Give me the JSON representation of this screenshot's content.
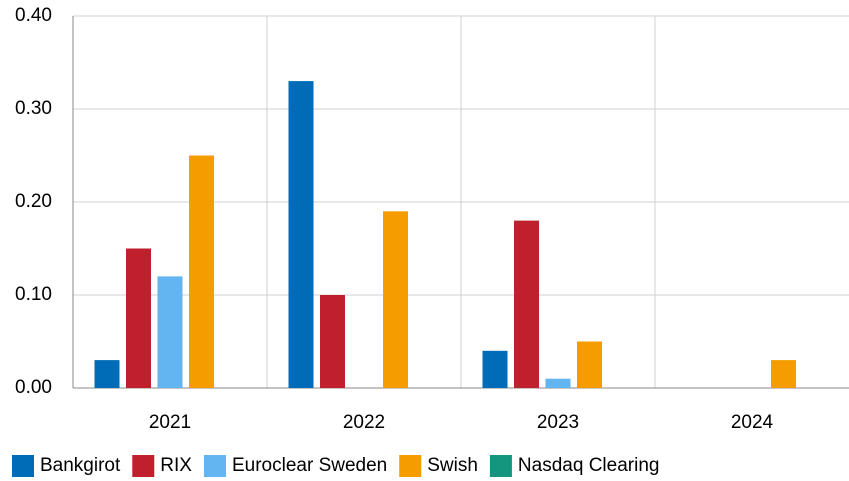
{
  "chart_data": {
    "type": "bar",
    "categories": [
      "2021",
      "2022",
      "2023",
      "2024"
    ],
    "series": [
      {
        "name": "Bankgirot",
        "color": "#006cb7",
        "values": [
          0.03,
          0.33,
          0.04,
          0
        ]
      },
      {
        "name": "RIX",
        "color": "#c0202e",
        "values": [
          0.15,
          0.1,
          0.18,
          0
        ]
      },
      {
        "name": "Euroclear Sweden",
        "color": "#62b5f0",
        "values": [
          0.12,
          0,
          0.01,
          0
        ]
      },
      {
        "name": "Swish",
        "color": "#f59c00",
        "values": [
          0.25,
          0.19,
          0.05,
          0.03
        ]
      },
      {
        "name": "Nasdaq Clearing",
        "color": "#13957e",
        "values": [
          0,
          0,
          0,
          0
        ]
      }
    ],
    "ylim": [
      0,
      0.4
    ],
    "yticks": [
      {
        "value": 0,
        "label": "0.00"
      },
      {
        "value": 0.1,
        "label": "0.10"
      },
      {
        "value": 0.2,
        "label": "0.20"
      },
      {
        "value": 0.3,
        "label": "0.30"
      },
      {
        "value": 0.4,
        "label": "0.40"
      }
    ],
    "grid": true,
    "legend": "bottom"
  }
}
